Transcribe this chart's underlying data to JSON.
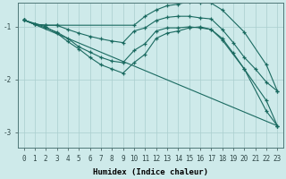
{
  "xlabel": "Humidex (Indice chaleur)",
  "background_color": "#ceeaea",
  "grid_color": "#aacece",
  "line_color": "#1a6a60",
  "xlim": [
    -0.5,
    23.5
  ],
  "ylim": [
    -3.3,
    -0.55
  ],
  "yticks": [
    -3,
    -2,
    -1
  ],
  "xticks": [
    0,
    1,
    2,
    3,
    4,
    5,
    6,
    7,
    8,
    9,
    10,
    11,
    12,
    13,
    14,
    15,
    16,
    17,
    18,
    19,
    20,
    21,
    22,
    23
  ],
  "line1_x": [
    0,
    1,
    2,
    3,
    10,
    11,
    12,
    13,
    14,
    15,
    16,
    17,
    18,
    20,
    22,
    23
  ],
  "line1_y": [
    -0.87,
    -0.95,
    -0.97,
    -0.97,
    -0.97,
    -0.8,
    -0.68,
    -0.6,
    -0.57,
    -0.52,
    -0.55,
    -0.55,
    -0.68,
    -1.1,
    -1.72,
    -2.22
  ],
  "line2_x": [
    0,
    1,
    2,
    3,
    4,
    5,
    6,
    7,
    8,
    9,
    10,
    11,
    12,
    13,
    14,
    15,
    16,
    17,
    18,
    19,
    20,
    21,
    22,
    23
  ],
  "line2_y": [
    -0.87,
    -0.95,
    -0.97,
    -0.97,
    -1.05,
    -1.12,
    -1.18,
    -1.23,
    -1.27,
    -1.3,
    -1.08,
    -1.02,
    -0.88,
    -0.82,
    -0.8,
    -0.8,
    -0.83,
    -0.85,
    -1.05,
    -1.3,
    -1.58,
    -1.8,
    -2.05,
    -2.22
  ],
  "line3_x": [
    0,
    1,
    2,
    3,
    4,
    5,
    6,
    7,
    8,
    9,
    10,
    11,
    12,
    13,
    14,
    15,
    16,
    17,
    18,
    19,
    20,
    22,
    23
  ],
  "line3_y": [
    -0.87,
    -0.95,
    -1.02,
    -1.1,
    -1.22,
    -1.38,
    -1.48,
    -1.58,
    -1.65,
    -1.68,
    -1.45,
    -1.32,
    -1.08,
    -1.02,
    -1.02,
    -1.0,
    -1.02,
    -1.05,
    -1.22,
    -1.5,
    -1.8,
    -2.4,
    -2.88
  ],
  "line4_x": [
    0,
    2,
    3,
    4,
    5,
    6,
    7,
    8,
    9,
    10,
    11,
    12,
    13,
    14,
    15,
    16,
    17,
    18,
    20,
    22,
    23
  ],
  "line4_y": [
    -0.87,
    -1.0,
    -1.12,
    -1.28,
    -1.42,
    -1.58,
    -1.72,
    -1.8,
    -1.88,
    -1.68,
    -1.52,
    -1.22,
    -1.12,
    -1.08,
    -1.02,
    -1.0,
    -1.05,
    -1.25,
    -1.8,
    -2.6,
    -2.88
  ],
  "line5_x": [
    0,
    23
  ],
  "line5_y": [
    -0.87,
    -2.88
  ]
}
